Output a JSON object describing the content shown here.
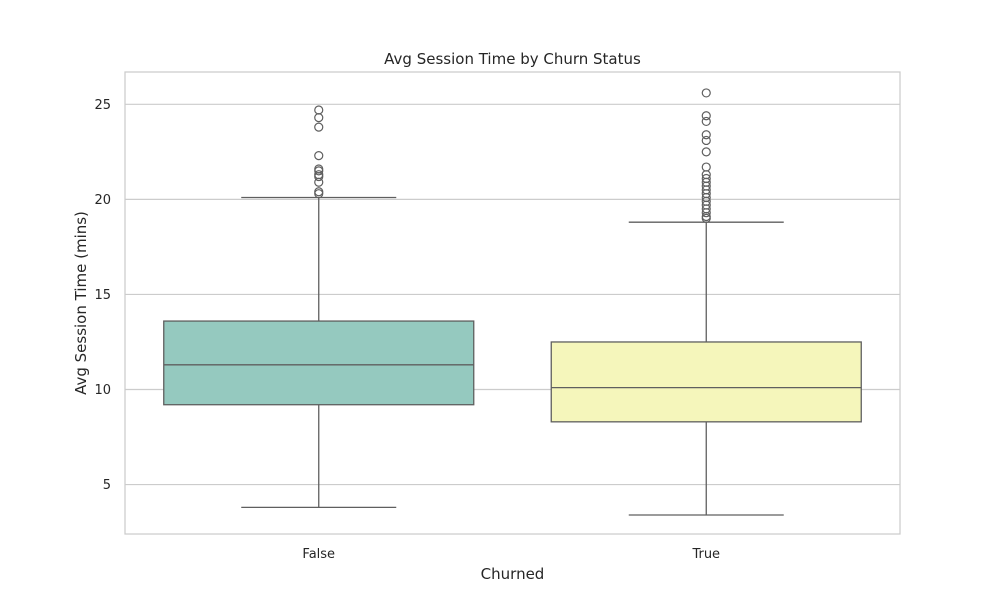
{
  "chart_data": {
    "type": "box",
    "title": "Avg Session Time by Churn Status",
    "xlabel": "Churned",
    "ylabel": "Avg Session Time (mins)",
    "categories": [
      "False",
      "True"
    ],
    "ylim": [
      2.4,
      26.7
    ],
    "yticks": [
      5,
      10,
      15,
      20,
      25
    ],
    "ytick_labels": [
      "5",
      "10",
      "15",
      "20",
      "25"
    ],
    "grid": true,
    "boxes": [
      {
        "category": "False",
        "color": "#95c9bf",
        "whisker_low": 3.8,
        "q1": 9.2,
        "median": 11.3,
        "q3": 13.6,
        "whisker_high": 20.1,
        "outliers": [
          20.3,
          20.4,
          20.9,
          21.2,
          21.3,
          21.5,
          21.6,
          22.3,
          23.8,
          24.3,
          24.7
        ]
      },
      {
        "category": "True",
        "color": "#f5f6bb",
        "whisker_low": 3.4,
        "q1": 8.3,
        "median": 10.1,
        "q3": 12.5,
        "whisker_high": 18.8,
        "outliers": [
          19.0,
          19.1,
          19.3,
          19.5,
          19.7,
          19.9,
          20.1,
          20.3,
          20.5,
          20.7,
          20.9,
          21.1,
          21.3,
          21.7,
          22.5,
          23.1,
          23.4,
          24.1,
          24.4,
          25.6
        ]
      }
    ]
  },
  "colors": {
    "frame": "#cccccc",
    "grid": "#cccccc",
    "line": "#5f5f5f"
  }
}
